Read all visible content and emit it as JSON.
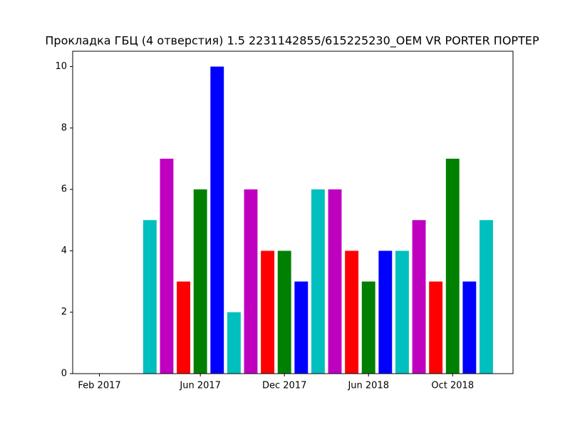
{
  "chart_data": {
    "type": "bar",
    "title": "Прокладка ГБЦ (4 отверстия) 1.5 2231142855/615225230_OEM VR PORTER ПОРТЕР",
    "categories": [
      "Feb 2017",
      null,
      null,
      null,
      null,
      null,
      "Jun 2017",
      null,
      null,
      null,
      null,
      "Dec 2017",
      null,
      null,
      null,
      null,
      "Jun 2018",
      null,
      null,
      null,
      null,
      "Oct 2018",
      null,
      null
    ],
    "values": [
      0,
      0,
      0,
      5,
      7,
      3,
      6,
      10,
      2,
      6,
      4,
      4,
      3,
      6,
      6,
      4,
      3,
      4,
      4,
      5,
      3,
      7,
      3,
      5
    ],
    "colors": [
      "#ff0000",
      "#008000",
      "#0000ff",
      "#00bfbf",
      "#bf00bf",
      "#ff0000",
      "#008000",
      "#0000ff",
      "#00bfbf",
      "#bf00bf",
      "#ff0000",
      "#008000",
      "#0000ff",
      "#00bfbf",
      "#bf00bf",
      "#ff0000",
      "#008000",
      "#0000ff",
      "#00bfbf",
      "#bf00bf",
      "#ff0000",
      "#008000",
      "#0000ff",
      "#00bfbf"
    ],
    "ylim": [
      0,
      10.5
    ],
    "yticks": [
      0,
      2,
      4,
      6,
      8,
      10
    ],
    "grid": false
  }
}
